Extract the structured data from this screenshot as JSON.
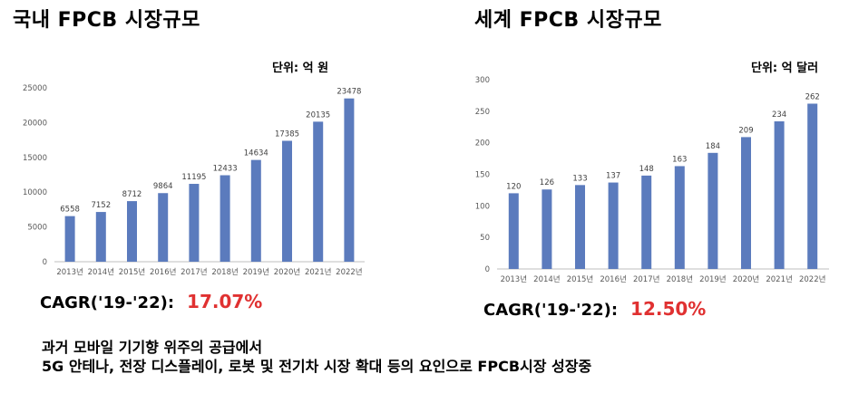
{
  "charts": [
    {
      "title": "국내 FPCB 시장규모",
      "unit": "단위: 억 원",
      "cagr_label": "CAGR('19-'22):",
      "cagr_value": "17.07%"
    },
    {
      "title": "세계 FPCB 시장규모",
      "unit": "단위: 억 달러",
      "cagr_label": "CAGR('19-'22):",
      "cagr_value": "12.50%"
    }
  ],
  "chart_data": [
    {
      "type": "bar",
      "title": "국내 FPCB 시장규모",
      "unit": "단위: 억 원",
      "categories": [
        "2013년",
        "2014년",
        "2015년",
        "2016년",
        "2017년",
        "2018년",
        "2019년",
        "2020년",
        "2021년",
        "2022년"
      ],
      "values": [
        6558,
        7152,
        8712,
        9864,
        11195,
        12433,
        14634,
        17385,
        20135,
        23478
      ],
      "ylim": [
        0,
        25000
      ],
      "yticks": [
        0,
        5000,
        10000,
        15000,
        20000,
        25000
      ],
      "bar_color": "#5b7bbd",
      "grid": false
    },
    {
      "type": "bar",
      "title": "세계 FPCB 시장규모",
      "unit": "단위: 억 달러",
      "categories": [
        "2013년",
        "2014년",
        "2015년",
        "2016년",
        "2017년",
        "2018년",
        "2019년",
        "2020년",
        "2021년",
        "2022년"
      ],
      "values": [
        120,
        126,
        133,
        137,
        148,
        163,
        184,
        209,
        234,
        262
      ],
      "ylim": [
        0,
        300
      ],
      "yticks": [
        0,
        50,
        100,
        150,
        200,
        250,
        300
      ],
      "bar_color": "#5b7bbd",
      "grid": false
    }
  ],
  "footnote": {
    "line1": "과거 모바일 기기향 위주의 공급에서",
    "line2": "5G 안테나, 전장 디스플레이, 로봇 및 전기차 시장 확대 등의 요인으로 FPCB시장 성장중"
  }
}
